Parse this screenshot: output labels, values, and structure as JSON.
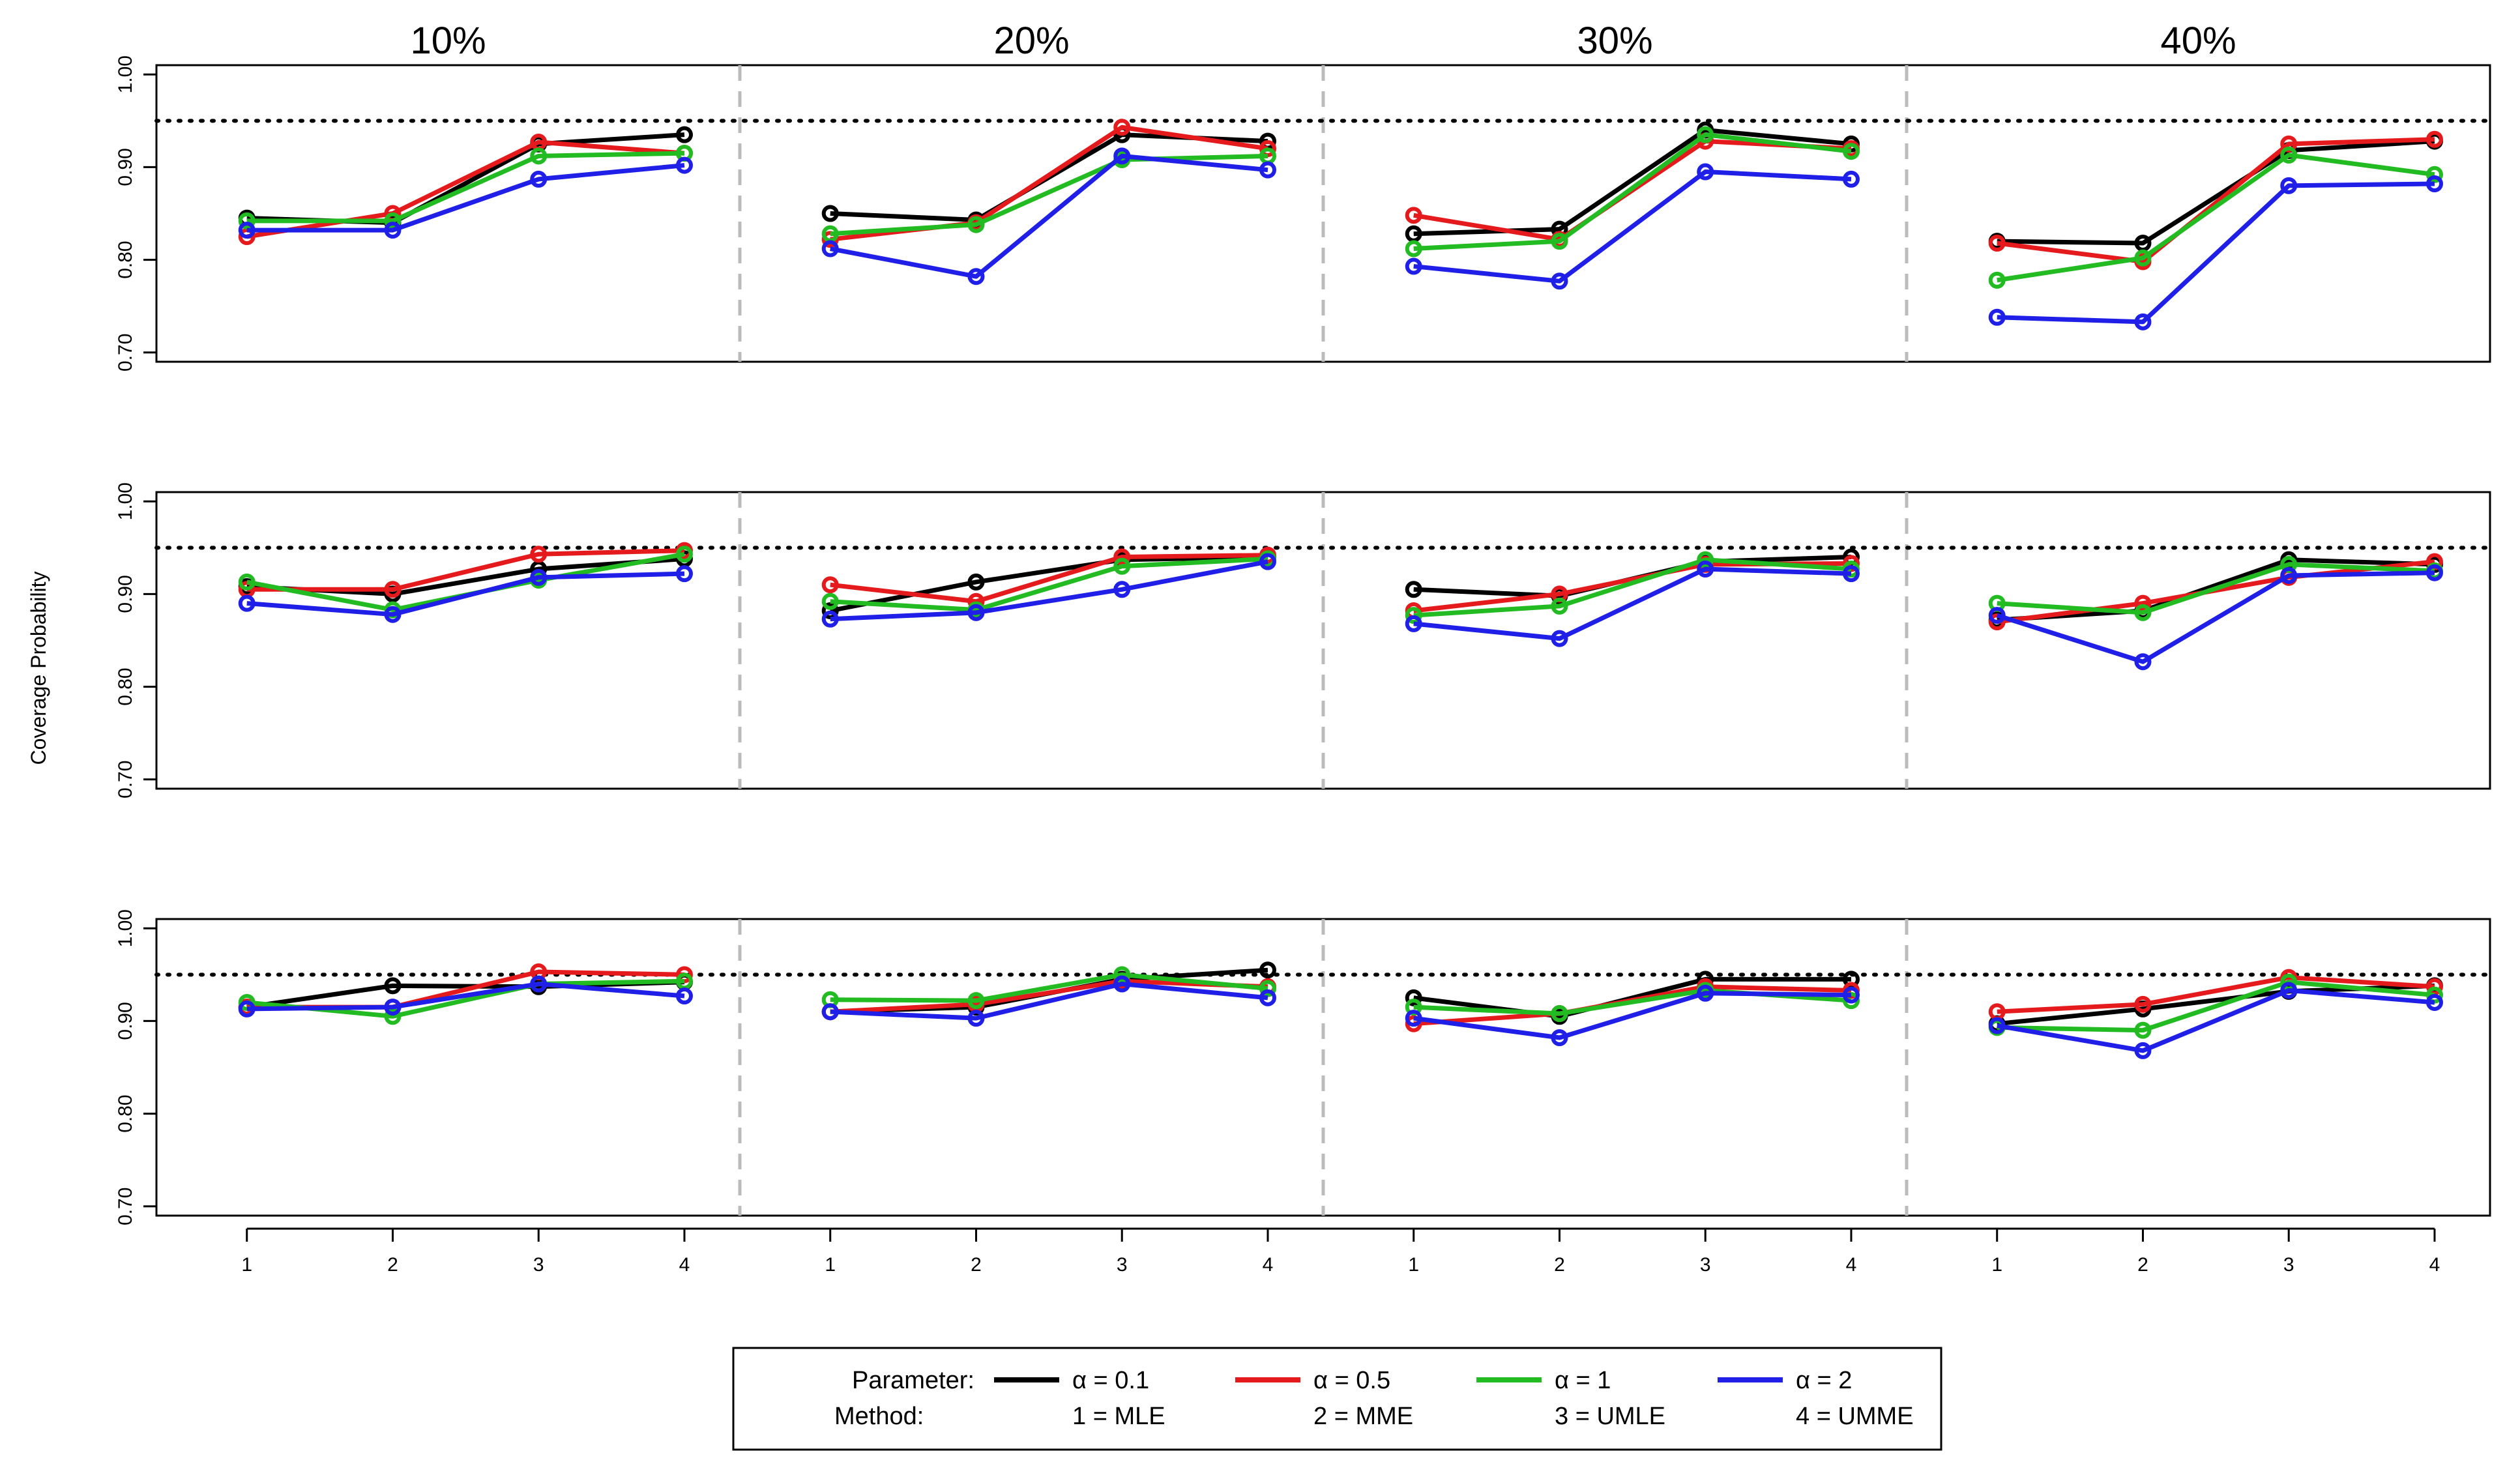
{
  "chart_data": {
    "type": "line",
    "ylabel": "Coverage Probability",
    "columns": [
      "10%",
      "20%",
      "30%",
      "40%"
    ],
    "x_ticks": [
      "1",
      "2",
      "3",
      "4"
    ],
    "y_ticks": [
      "0.70",
      "0.80",
      "0.90",
      "1.00"
    ],
    "ylim": [
      0.69,
      1.01
    ],
    "reference_line": 0.95,
    "colors": {
      "a01": "#000000",
      "a05": "#e41a1c",
      "a1": "#22bb22",
      "a2": "#1f1fe8"
    },
    "series_order": [
      "a01",
      "a05",
      "a1",
      "a2"
    ],
    "panels": [
      {
        "row": 1,
        "columns": [
          {
            "a01": [
              0.845,
              0.84,
              0.925,
              0.935
            ],
            "a05": [
              0.825,
              0.85,
              0.927,
              0.915
            ],
            "a1": [
              0.842,
              0.842,
              0.912,
              0.915
            ],
            "a2": [
              0.832,
              0.832,
              0.887,
              0.902
            ]
          },
          {
            "a01": [
              0.85,
              0.843,
              0.935,
              0.928
            ],
            "a05": [
              0.822,
              0.84,
              0.943,
              0.92
            ],
            "a1": [
              0.828,
              0.838,
              0.908,
              0.912
            ],
            "a2": [
              0.812,
              0.782,
              0.912,
              0.897
            ]
          },
          {
            "a01": [
              0.828,
              0.833,
              0.94,
              0.925
            ],
            "a05": [
              0.848,
              0.822,
              0.928,
              0.92
            ],
            "a1": [
              0.812,
              0.82,
              0.935,
              0.917
            ],
            "a2": [
              0.793,
              0.777,
              0.895,
              0.887
            ]
          },
          {
            "a01": [
              0.82,
              0.818,
              0.918,
              0.928
            ],
            "a05": [
              0.818,
              0.798,
              0.925,
              0.93
            ],
            "a1": [
              0.778,
              0.802,
              0.913,
              0.892
            ],
            "a2": [
              0.738,
              0.733,
              0.88,
              0.882
            ]
          }
        ]
      },
      {
        "row": 2,
        "columns": [
          {
            "a01": [
              0.908,
              0.9,
              0.927,
              0.938
            ],
            "a05": [
              0.905,
              0.905,
              0.943,
              0.947
            ],
            "a1": [
              0.913,
              0.883,
              0.915,
              0.943
            ],
            "a2": [
              0.89,
              0.878,
              0.918,
              0.922
            ]
          },
          {
            "a01": [
              0.882,
              0.913,
              0.937,
              0.94
            ],
            "a05": [
              0.91,
              0.892,
              0.94,
              0.942
            ],
            "a1": [
              0.892,
              0.883,
              0.93,
              0.938
            ],
            "a2": [
              0.873,
              0.88,
              0.905,
              0.935
            ]
          },
          {
            "a01": [
              0.905,
              0.898,
              0.935,
              0.94
            ],
            "a05": [
              0.882,
              0.9,
              0.932,
              0.933
            ],
            "a1": [
              0.877,
              0.887,
              0.937,
              0.927
            ],
            "a2": [
              0.868,
              0.852,
              0.927,
              0.922
            ]
          },
          {
            "a01": [
              0.872,
              0.882,
              0.937,
              0.932
            ],
            "a05": [
              0.87,
              0.89,
              0.918,
              0.935
            ],
            "a1": [
              0.89,
              0.88,
              0.932,
              0.925
            ],
            "a2": [
              0.877,
              0.827,
              0.92,
              0.923
            ]
          }
        ]
      },
      {
        "row": 3,
        "columns": [
          {
            "a01": [
              0.915,
              0.938,
              0.937,
              0.942
            ],
            "a05": [
              0.915,
              0.915,
              0.953,
              0.95
            ],
            "a1": [
              0.92,
              0.905,
              0.94,
              0.943
            ],
            "a2": [
              0.913,
              0.915,
              0.94,
              0.927
            ]
          },
          {
            "a01": [
              0.91,
              0.915,
              0.945,
              0.955
            ],
            "a05": [
              0.91,
              0.918,
              0.943,
              0.937
            ],
            "a1": [
              0.923,
              0.922,
              0.95,
              0.935
            ],
            "a2": [
              0.91,
              0.903,
              0.94,
              0.925
            ]
          },
          {
            "a01": [
              0.925,
              0.905,
              0.945,
              0.945
            ],
            "a05": [
              0.897,
              0.908,
              0.937,
              0.933
            ],
            "a1": [
              0.915,
              0.908,
              0.933,
              0.922
            ],
            "a2": [
              0.903,
              0.882,
              0.93,
              0.928
            ]
          },
          {
            "a01": [
              0.897,
              0.913,
              0.932,
              0.938
            ],
            "a05": [
              0.91,
              0.918,
              0.947,
              0.937
            ],
            "a1": [
              0.893,
              0.89,
              0.942,
              0.928
            ],
            "a2": [
              0.895,
              0.868,
              0.933,
              0.92
            ]
          }
        ]
      }
    ],
    "legend": {
      "parameter_label": "Parameter:",
      "method_label": "Method:",
      "entries": [
        {
          "key": "a01",
          "label": "α = 0.1",
          "method": "1 = MLE"
        },
        {
          "key": "a05",
          "label": "α = 0.5",
          "method": "2 = MME"
        },
        {
          "key": "a1",
          "label": "α = 1",
          "method": "3 = UMLE"
        },
        {
          "key": "a2",
          "label": "α = 2",
          "method": "4 = UMME"
        }
      ]
    }
  }
}
